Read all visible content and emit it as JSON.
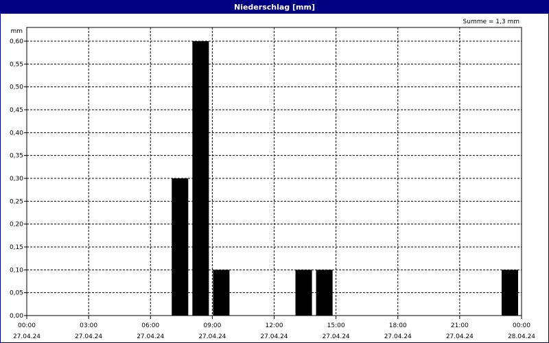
{
  "window": {
    "title": "Niederschlag [mm]"
  },
  "chart_data": {
    "type": "bar",
    "title": "Niederschlag [mm]",
    "annotation": "Summe = 1,3 mm",
    "ylabel": "mm",
    "ylim": [
      0,
      0.6
    ],
    "y_ticks": [
      "0,00",
      "0,05",
      "0,10",
      "0,15",
      "0,20",
      "0,25",
      "0,30",
      "0,35",
      "0,40",
      "0,45",
      "0,50",
      "0,55",
      "0,60"
    ],
    "x_range_hours": [
      0,
      24
    ],
    "x_ticks": [
      {
        "hour": 0,
        "time": "00:00",
        "date": "27.04.24"
      },
      {
        "hour": 3,
        "time": "03:00",
        "date": "27.04.24"
      },
      {
        "hour": 6,
        "time": "06:00",
        "date": "27.04.24"
      },
      {
        "hour": 9,
        "time": "09:00",
        "date": "27.04.24"
      },
      {
        "hour": 12,
        "time": "12:00",
        "date": "27.04.24"
      },
      {
        "hour": 15,
        "time": "15:00",
        "date": "27.04.24"
      },
      {
        "hour": 18,
        "time": "18:00",
        "date": "27.04.24"
      },
      {
        "hour": 21,
        "time": "21:00",
        "date": "27.04.24"
      },
      {
        "hour": 24,
        "time": "00:00",
        "date": "28.04.24"
      }
    ],
    "bars": [
      {
        "start_hour": 7,
        "value": 0.3
      },
      {
        "start_hour": 8,
        "value": 0.6
      },
      {
        "start_hour": 9,
        "value": 0.1
      },
      {
        "start_hour": 13,
        "value": 0.1
      },
      {
        "start_hour": 14,
        "value": 0.1
      },
      {
        "start_hour": 23,
        "value": 0.1
      }
    ],
    "grid": true,
    "colors": {
      "bar": "#000000",
      "title_bar": "#000080",
      "grid": "#000000"
    }
  }
}
